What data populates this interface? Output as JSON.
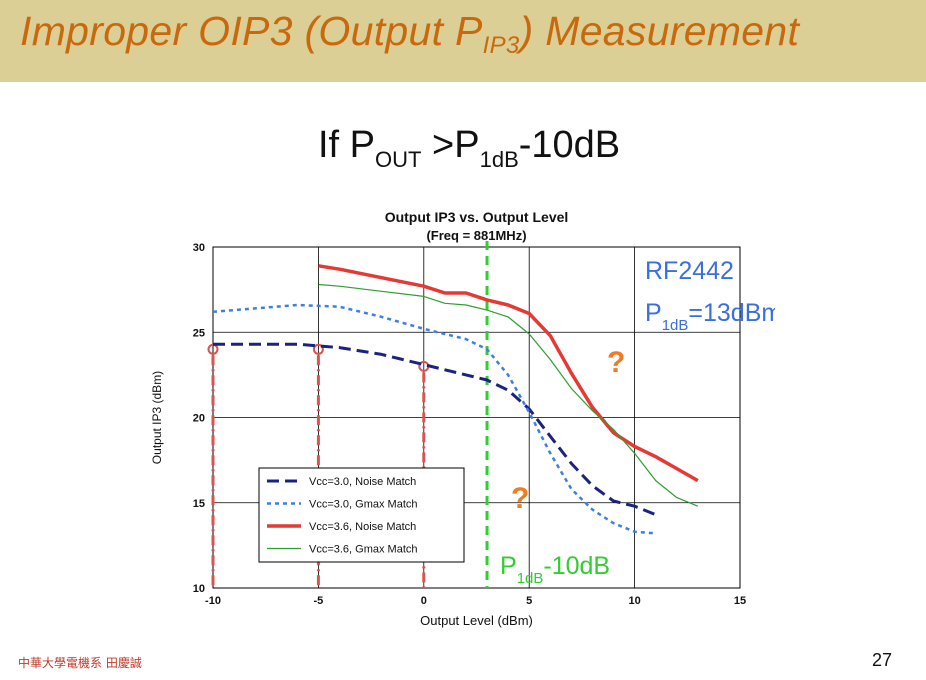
{
  "slide": {
    "title_main": "Improper OIP3 (Output P",
    "title_sub": "IP3",
    "title_end": ") Measurement",
    "condition": {
      "prefix": "If P",
      "sub1": "OUT",
      "mid": " >P",
      "sub2": "1dB",
      "suffix": "-10dB"
    },
    "footer": "中華大學電機系 田慶誠",
    "page_number": "27"
  },
  "colors": {
    "title_bar": "#dccf95",
    "title_text": "#c8690e",
    "noise_match_3v": "#1a237e",
    "gmax_match_3v": "#3f7fe0",
    "noise_match_36v": "#e53935",
    "gmax_match_36v": "#2e9e2e",
    "p1db_line": "#33cc33",
    "annotation_blue": "#3a6fe0",
    "question_mark": "#f07b22",
    "improper_markers": "#d9534f"
  },
  "chart_data": {
    "type": "line",
    "title": "Output IP3 vs. Output Level",
    "subtitle": "(Freq = 881MHz)",
    "xlabel": "Output Level (dBm)",
    "ylabel": "Output IP3 (dBm)",
    "xlim": [
      -10,
      15
    ],
    "ylim": [
      10,
      30
    ],
    "xticks": [
      -10,
      -5,
      0,
      5,
      10,
      15
    ],
    "yticks": [
      10,
      15,
      20,
      25,
      30
    ],
    "grid": true,
    "legend_position": "bottom-left",
    "series": [
      {
        "name": "Vcc=3.0, Noise Match",
        "style": "dashed",
        "x": [
          -10,
          -8,
          -6,
          -4,
          -2,
          0,
          1,
          2,
          3,
          4,
          5,
          6,
          7,
          8,
          9,
          10,
          11
        ],
        "y": [
          24.3,
          24.3,
          24.3,
          24.1,
          23.7,
          23.1,
          22.8,
          22.5,
          22.2,
          21.6,
          20.5,
          18.9,
          17.3,
          16.0,
          15.1,
          14.8,
          14.3
        ]
      },
      {
        "name": "Vcc=3.0, Gmax Match",
        "style": "dotted",
        "x": [
          -10,
          -8,
          -6,
          -4,
          -2,
          0,
          1,
          2,
          3,
          4,
          5,
          6,
          7,
          8,
          9,
          10,
          11
        ],
        "y": [
          26.2,
          26.4,
          26.6,
          26.5,
          25.9,
          25.2,
          24.9,
          24.6,
          24.0,
          22.5,
          20.3,
          17.9,
          15.8,
          14.6,
          13.8,
          13.3,
          13.2
        ]
      },
      {
        "name": "Vcc=3.6, Noise Match",
        "style": "solid",
        "x": [
          -5,
          -4,
          -2,
          0,
          1,
          2,
          3,
          4,
          5,
          6,
          7,
          8,
          9,
          10,
          11,
          12,
          13
        ],
        "y": [
          28.9,
          28.7,
          28.2,
          27.7,
          27.3,
          27.3,
          26.9,
          26.6,
          26.1,
          24.8,
          22.6,
          20.6,
          19.1,
          18.3,
          17.7,
          17.0,
          16.3
        ]
      },
      {
        "name": "Vcc=3.6, Gmax Match",
        "style": "solid-thin",
        "x": [
          -5,
          -4,
          -2,
          0,
          1,
          2,
          3,
          4,
          5,
          6,
          7,
          8,
          9,
          10,
          11,
          12,
          13
        ],
        "y": [
          27.8,
          27.7,
          27.4,
          27.1,
          26.7,
          26.6,
          26.3,
          25.9,
          24.9,
          23.4,
          21.7,
          20.4,
          19.3,
          17.9,
          16.3,
          15.3,
          14.8
        ]
      }
    ],
    "vertical_marker": {
      "label_prefix": "P",
      "label_sub": "1dB",
      "label_suffix": "-10dB",
      "x": 3
    },
    "improper_points": {
      "x": [
        -10,
        -5,
        0
      ],
      "y": [
        24.0,
        24.0,
        23.0
      ]
    },
    "annotations": {
      "part": "RF2442",
      "p1db_prefix": "P",
      "p1db_sub": "1dB",
      "p1db_value": "=13dBm",
      "question_mark": "?"
    }
  }
}
